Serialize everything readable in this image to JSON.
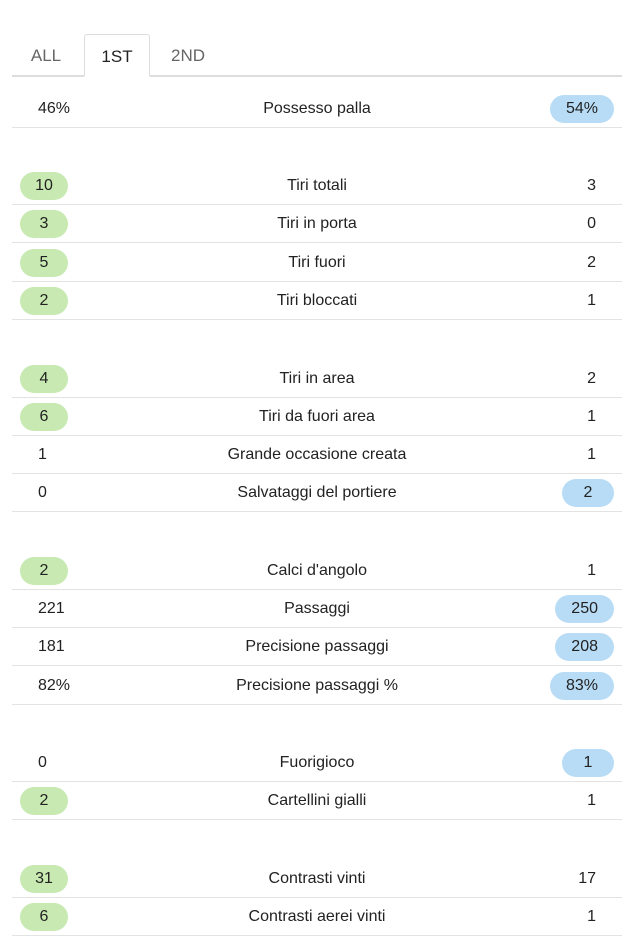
{
  "tabs": [
    "ALL",
    "1ST",
    "2ND"
  ],
  "rows": [
    {
      "label": "Possesso palla",
      "home": "46%",
      "away": "54%",
      "hi": "away"
    },
    {
      "label": "Tiri totali",
      "home": "10",
      "away": "3",
      "hi": "home"
    },
    {
      "label": "Tiri in porta",
      "home": "3",
      "away": "0",
      "hi": "home"
    },
    {
      "label": "Tiri fuori",
      "home": "5",
      "away": "2",
      "hi": "home"
    },
    {
      "label": "Tiri bloccati",
      "home": "2",
      "away": "1",
      "hi": "home"
    },
    {
      "label": "Tiri in area",
      "home": "4",
      "away": "2",
      "hi": "home"
    },
    {
      "label": "Tiri da fuori area",
      "home": "6",
      "away": "1",
      "hi": "home"
    },
    {
      "label": "Grande occasione creata",
      "home": "1",
      "away": "1",
      "hi": "none"
    },
    {
      "label": "Salvataggi del portiere",
      "home": "0",
      "away": "2",
      "hi": "away"
    },
    {
      "label": "Calci d'angolo",
      "home": "2",
      "away": "1",
      "hi": "home"
    },
    {
      "label": "Passaggi",
      "home": "221",
      "away": "250",
      "hi": "away"
    },
    {
      "label": "Precisione passaggi",
      "home": "181",
      "away": "208",
      "hi": "away"
    },
    {
      "label": "Precisione passaggi %",
      "home": "82%",
      "away": "83%",
      "hi": "away"
    },
    {
      "label": "Fuorigioco",
      "home": "0",
      "away": "1",
      "hi": "away"
    },
    {
      "label": "Cartellini gialli",
      "home": "2",
      "away": "1",
      "hi": "home"
    },
    {
      "label": "Contrasti vinti",
      "home": "31",
      "away": "17",
      "hi": "home"
    },
    {
      "label": "Contrasti aerei vinti",
      "home": "6",
      "away": "1",
      "hi": "home"
    }
  ]
}
